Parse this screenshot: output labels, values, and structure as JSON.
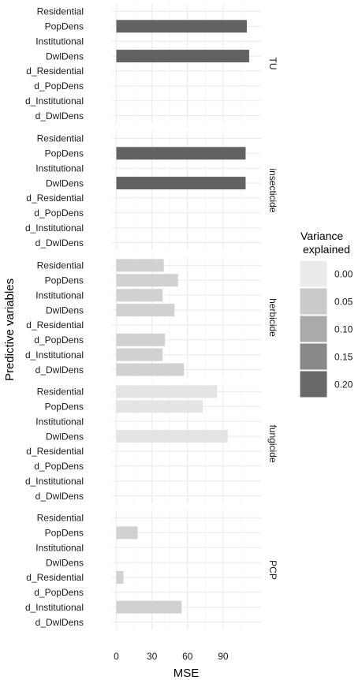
{
  "chart_data": {
    "type": "bar",
    "orientation": "horizontal",
    "xlabel": "MSE",
    "ylabel": "Predictive variables",
    "xlim": [
      -3,
      122
    ],
    "xticks": [
      0,
      30,
      60,
      90
    ],
    "grid": true,
    "categories": [
      "Residential",
      "PopDens",
      "Institutional",
      "DwlDens",
      "d_Residential",
      "d_PopDens",
      "d_Institutional",
      "d_DwlDens"
    ],
    "legend": {
      "title": [
        "Variance",
        "explained"
      ],
      "placement": "right",
      "entries": [
        {
          "label": "0.00",
          "value": 0.0
        },
        {
          "label": "0.05",
          "value": 0.05
        },
        {
          "label": "0.10",
          "value": 0.1
        },
        {
          "label": "0.15",
          "value": 0.15
        },
        {
          "label": "0.20",
          "value": 0.2
        }
      ]
    },
    "panels": [
      {
        "name": "TU",
        "values": [
          null,
          110,
          null,
          112,
          null,
          null,
          null,
          null
        ],
        "variance": [
          null,
          0.21,
          null,
          0.21,
          null,
          null,
          null,
          null
        ]
      },
      {
        "name": "insecticide",
        "values": [
          null,
          109,
          null,
          109,
          null,
          null,
          null,
          null
        ],
        "variance": [
          null,
          0.21,
          null,
          0.21,
          null,
          null,
          null,
          null
        ]
      },
      {
        "name": "herbicide",
        "values": [
          40,
          52,
          39,
          49,
          null,
          41,
          39,
          57
        ],
        "variance": [
          0.04,
          0.04,
          0.04,
          0.04,
          null,
          0.04,
          0.04,
          0.04
        ]
      },
      {
        "name": "fungicide",
        "values": [
          85,
          73,
          null,
          94,
          null,
          null,
          null,
          null
        ],
        "variance": [
          0.01,
          0.01,
          null,
          0.01,
          null,
          null,
          null,
          null
        ]
      },
      {
        "name": "PCP",
        "values": [
          null,
          18,
          null,
          null,
          6,
          null,
          55,
          null
        ],
        "variance": [
          null,
          0.04,
          null,
          null,
          0.04,
          null,
          0.04,
          null
        ]
      }
    ]
  }
}
